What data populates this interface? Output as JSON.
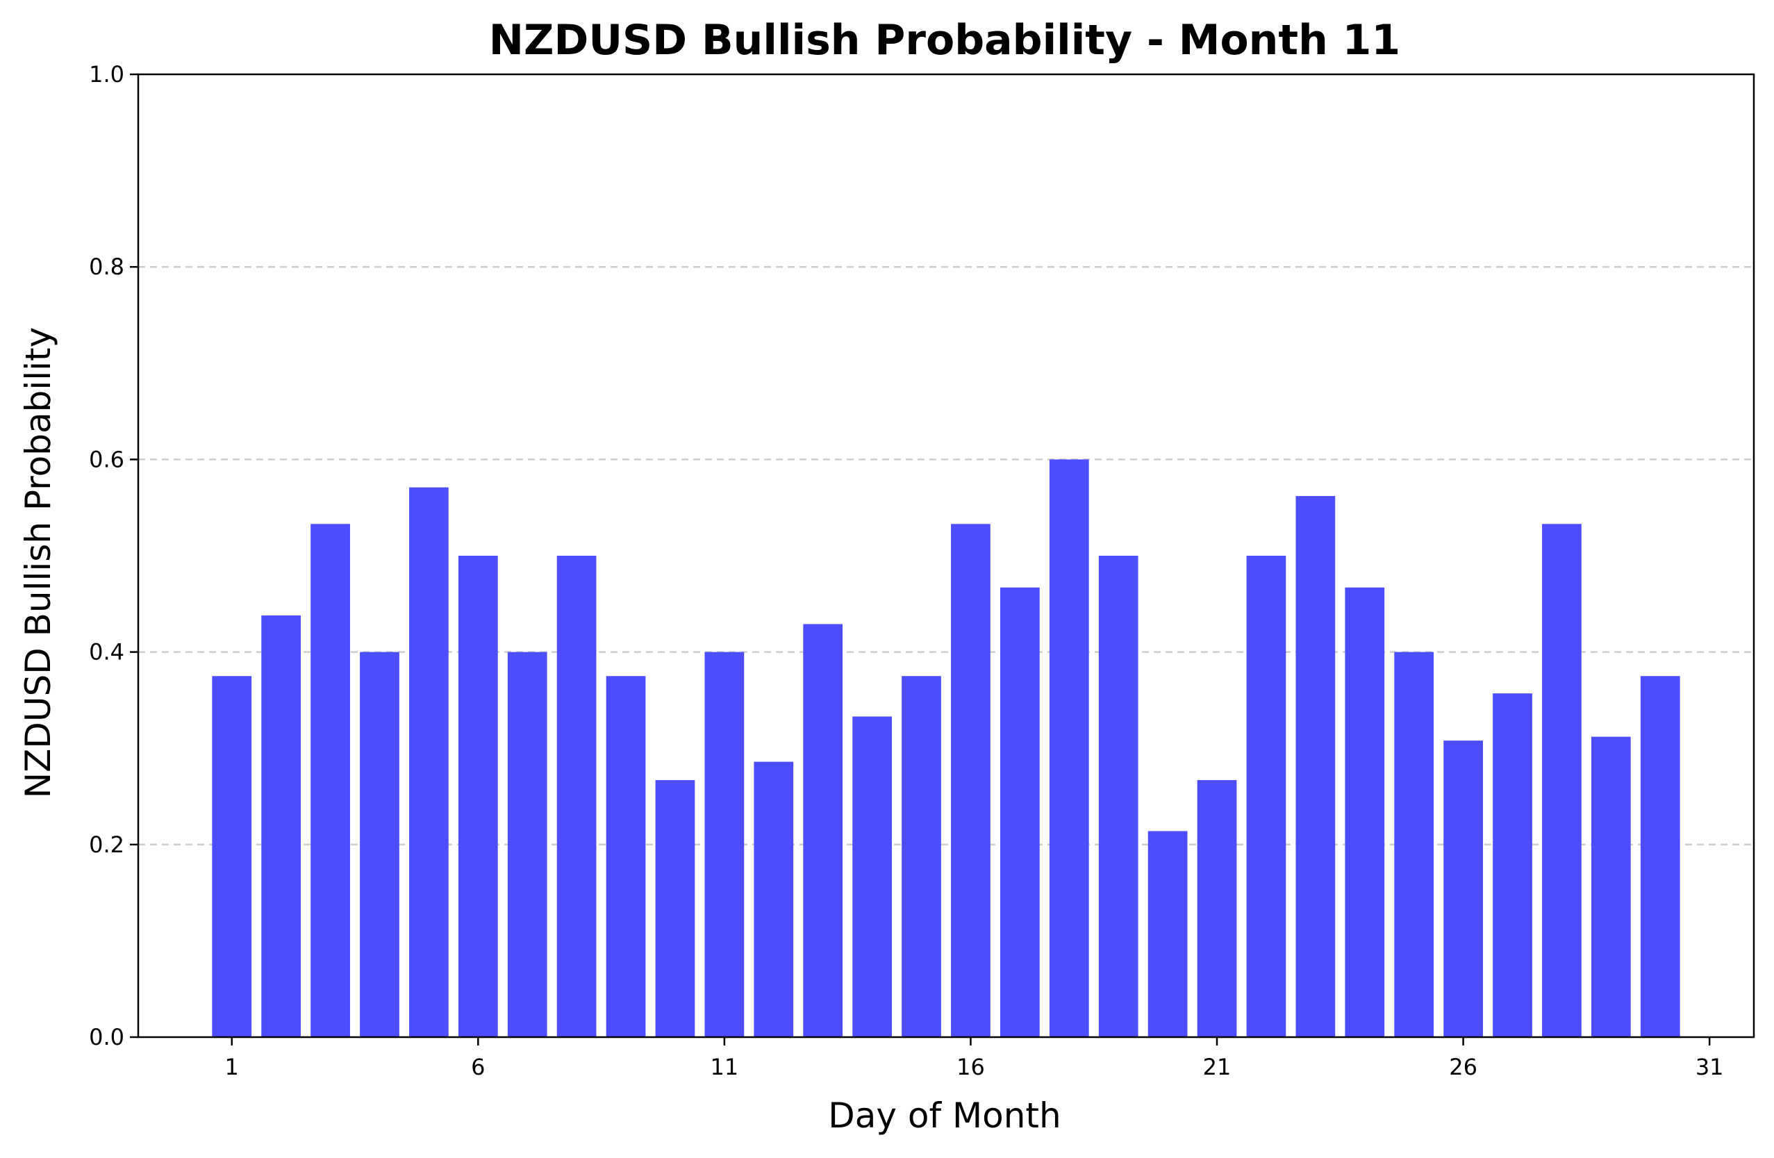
{
  "chart_data": {
    "type": "bar",
    "title": "NZDUSD Bullish Probability - Month 11",
    "xlabel": "Day of Month",
    "ylabel": "NZDUSD Bullish Probability",
    "ylim": [
      0,
      1.0
    ],
    "xlim": [
      -0.9,
      31.9
    ],
    "yticks": [
      0.0,
      0.2,
      0.4,
      0.6,
      0.8,
      1.0
    ],
    "ytick_labels": [
      "0.0",
      "0.2",
      "0.4",
      "0.6",
      "0.8",
      "1.0"
    ],
    "xticks": [
      1,
      6,
      11,
      16,
      21,
      26,
      31
    ],
    "xtick_labels": [
      "1",
      "6",
      "11",
      "16",
      "21",
      "26",
      "31"
    ],
    "grid_y": [
      0.2,
      0.4,
      0.6,
      0.8
    ],
    "bar_color": "#4b4dfe",
    "categories": [
      1,
      2,
      3,
      4,
      5,
      6,
      7,
      8,
      9,
      10,
      11,
      12,
      13,
      14,
      15,
      16,
      17,
      18,
      19,
      20,
      21,
      22,
      23,
      24,
      25,
      26,
      27,
      28,
      29,
      30
    ],
    "values": [
      0.375,
      0.438,
      0.533,
      0.4,
      0.571,
      0.5,
      0.4,
      0.5,
      0.375,
      0.267,
      0.4,
      0.286,
      0.429,
      0.333,
      0.375,
      0.533,
      0.467,
      0.6,
      0.5,
      0.214,
      0.267,
      0.5,
      0.562,
      0.467,
      0.4,
      0.308,
      0.357,
      0.533,
      0.312,
      0.375
    ]
  }
}
